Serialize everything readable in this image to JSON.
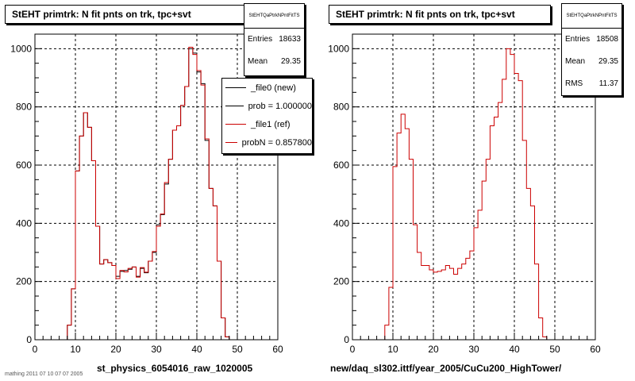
{
  "chart_data": [
    {
      "type": "line",
      "title": "StEHT primtrk: N fit pnts on trk, tpc+svt",
      "xlabel": "st_physics_6054016_raw_1020005",
      "ylabel": "",
      "xlim": [
        0,
        60
      ],
      "ylim": [
        0,
        1050
      ],
      "x_ticks": [
        "0",
        "10",
        "20",
        "30",
        "40",
        "50",
        "60"
      ],
      "y_ticks": [
        "0",
        "200",
        "400",
        "600",
        "800",
        "1000"
      ],
      "grid": true,
      "bin_width": 1,
      "x_start": 0,
      "stats": {
        "name": "StEHTQaPtrkNPntFitTS",
        "entries_label": "Entries",
        "entries": "18633",
        "mean_label": "Mean",
        "mean": "29.35"
      },
      "legend": [
        {
          "label": "_file0 (new)",
          "color": "#000000"
        },
        {
          "label": "prob = 1.000000",
          "color": "#000000"
        },
        {
          "label": "_file1 (ref)",
          "color": "#cc0000"
        },
        {
          "label": "probN = 0.857800",
          "color": "#cc0000"
        }
      ],
      "series": [
        {
          "name": "_file0 (new)",
          "color": "#000000",
          "values": [
            0,
            0,
            0,
            0,
            0,
            0,
            0,
            0,
            50,
            175,
            580,
            700,
            780,
            730,
            615,
            390,
            260,
            275,
            265,
            255,
            218,
            235,
            238,
            242,
            250,
            218,
            245,
            230,
            270,
            300,
            395,
            430,
            535,
            620,
            720,
            735,
            805,
            870,
            1000,
            985,
            920,
            880,
            685,
            520,
            460,
            270,
            75,
            10,
            0,
            0,
            0,
            0,
            0,
            0,
            0,
            0,
            0,
            0,
            0,
            0
          ]
        },
        {
          "name": "_file1 (ref)",
          "color": "#cc0000",
          "values": [
            0,
            0,
            0,
            0,
            0,
            0,
            0,
            0,
            50,
            175,
            580,
            700,
            780,
            730,
            615,
            390,
            260,
            275,
            265,
            255,
            210,
            238,
            233,
            245,
            250,
            215,
            248,
            232,
            270,
            303,
            390,
            432,
            540,
            620,
            720,
            735,
            805,
            870,
            1005,
            980,
            925,
            875,
            690,
            520,
            460,
            270,
            75,
            10,
            0,
            0,
            0,
            0,
            0,
            0,
            0,
            0,
            0,
            0,
            0,
            0
          ]
        }
      ]
    },
    {
      "type": "line",
      "title": "StEHT primtrk: N fit pnts on trk, tpc+svt",
      "xlabel": "new/daq_sl302.ittf/year_2005/CuCu200_HighTower/",
      "ylabel": "",
      "xlim": [
        0,
        60
      ],
      "ylim": [
        0,
        1050
      ],
      "x_ticks": [
        "0",
        "10",
        "20",
        "30",
        "40",
        "50",
        "60"
      ],
      "y_ticks": [
        "0",
        "200",
        "400",
        "600",
        "800",
        "1000"
      ],
      "grid": true,
      "bin_width": 1,
      "x_start": 0,
      "stats": {
        "name": "StEHTQaPtrkNPntFitTS",
        "entries_label": "Entries",
        "entries": "18508",
        "mean_label": "Mean",
        "mean": "29.35",
        "rms_label": "RMS",
        "rms": "11.37"
      },
      "series": [
        {
          "name": "",
          "color": "#cc0000",
          "values": [
            0,
            0,
            0,
            0,
            0,
            0,
            0,
            0,
            50,
            180,
            595,
            710,
            775,
            725,
            620,
            395,
            300,
            255,
            255,
            240,
            232,
            235,
            240,
            255,
            245,
            225,
            245,
            260,
            280,
            305,
            385,
            445,
            545,
            620,
            735,
            765,
            815,
            895,
            1000,
            980,
            915,
            890,
            685,
            520,
            460,
            260,
            75,
            10,
            0,
            0,
            0,
            0,
            0,
            0,
            0,
            0,
            0,
            0,
            0,
            0
          ]
        }
      ]
    }
  ],
  "footer_text": "mathing 2011 07 10 07 07 2005"
}
